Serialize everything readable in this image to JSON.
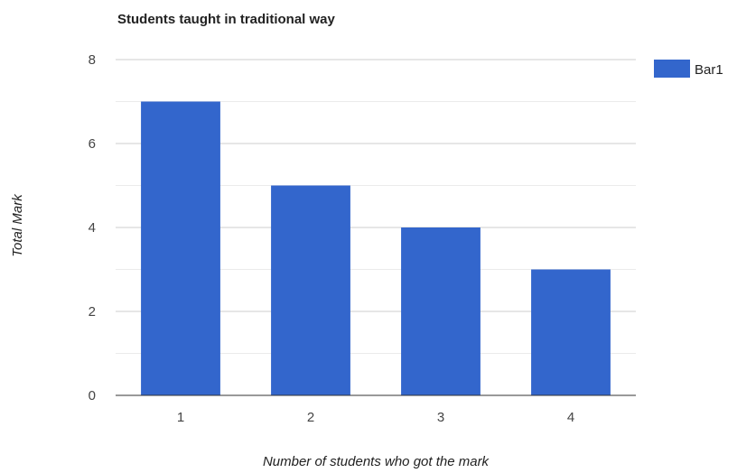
{
  "chart_data": {
    "type": "bar",
    "title": "Students taught in traditional way",
    "xlabel": "Number of students who got the mark",
    "ylabel": "Total Mark",
    "categories": [
      "1",
      "2",
      "3",
      "4"
    ],
    "series": [
      {
        "name": "Bar1",
        "values": [
          7,
          5,
          4,
          3
        ],
        "color": "#3366cc"
      }
    ],
    "ylim": [
      0,
      8
    ],
    "yticks": [
      "0",
      "2",
      "4",
      "6",
      "8"
    ],
    "grid": true,
    "legend": "right"
  }
}
